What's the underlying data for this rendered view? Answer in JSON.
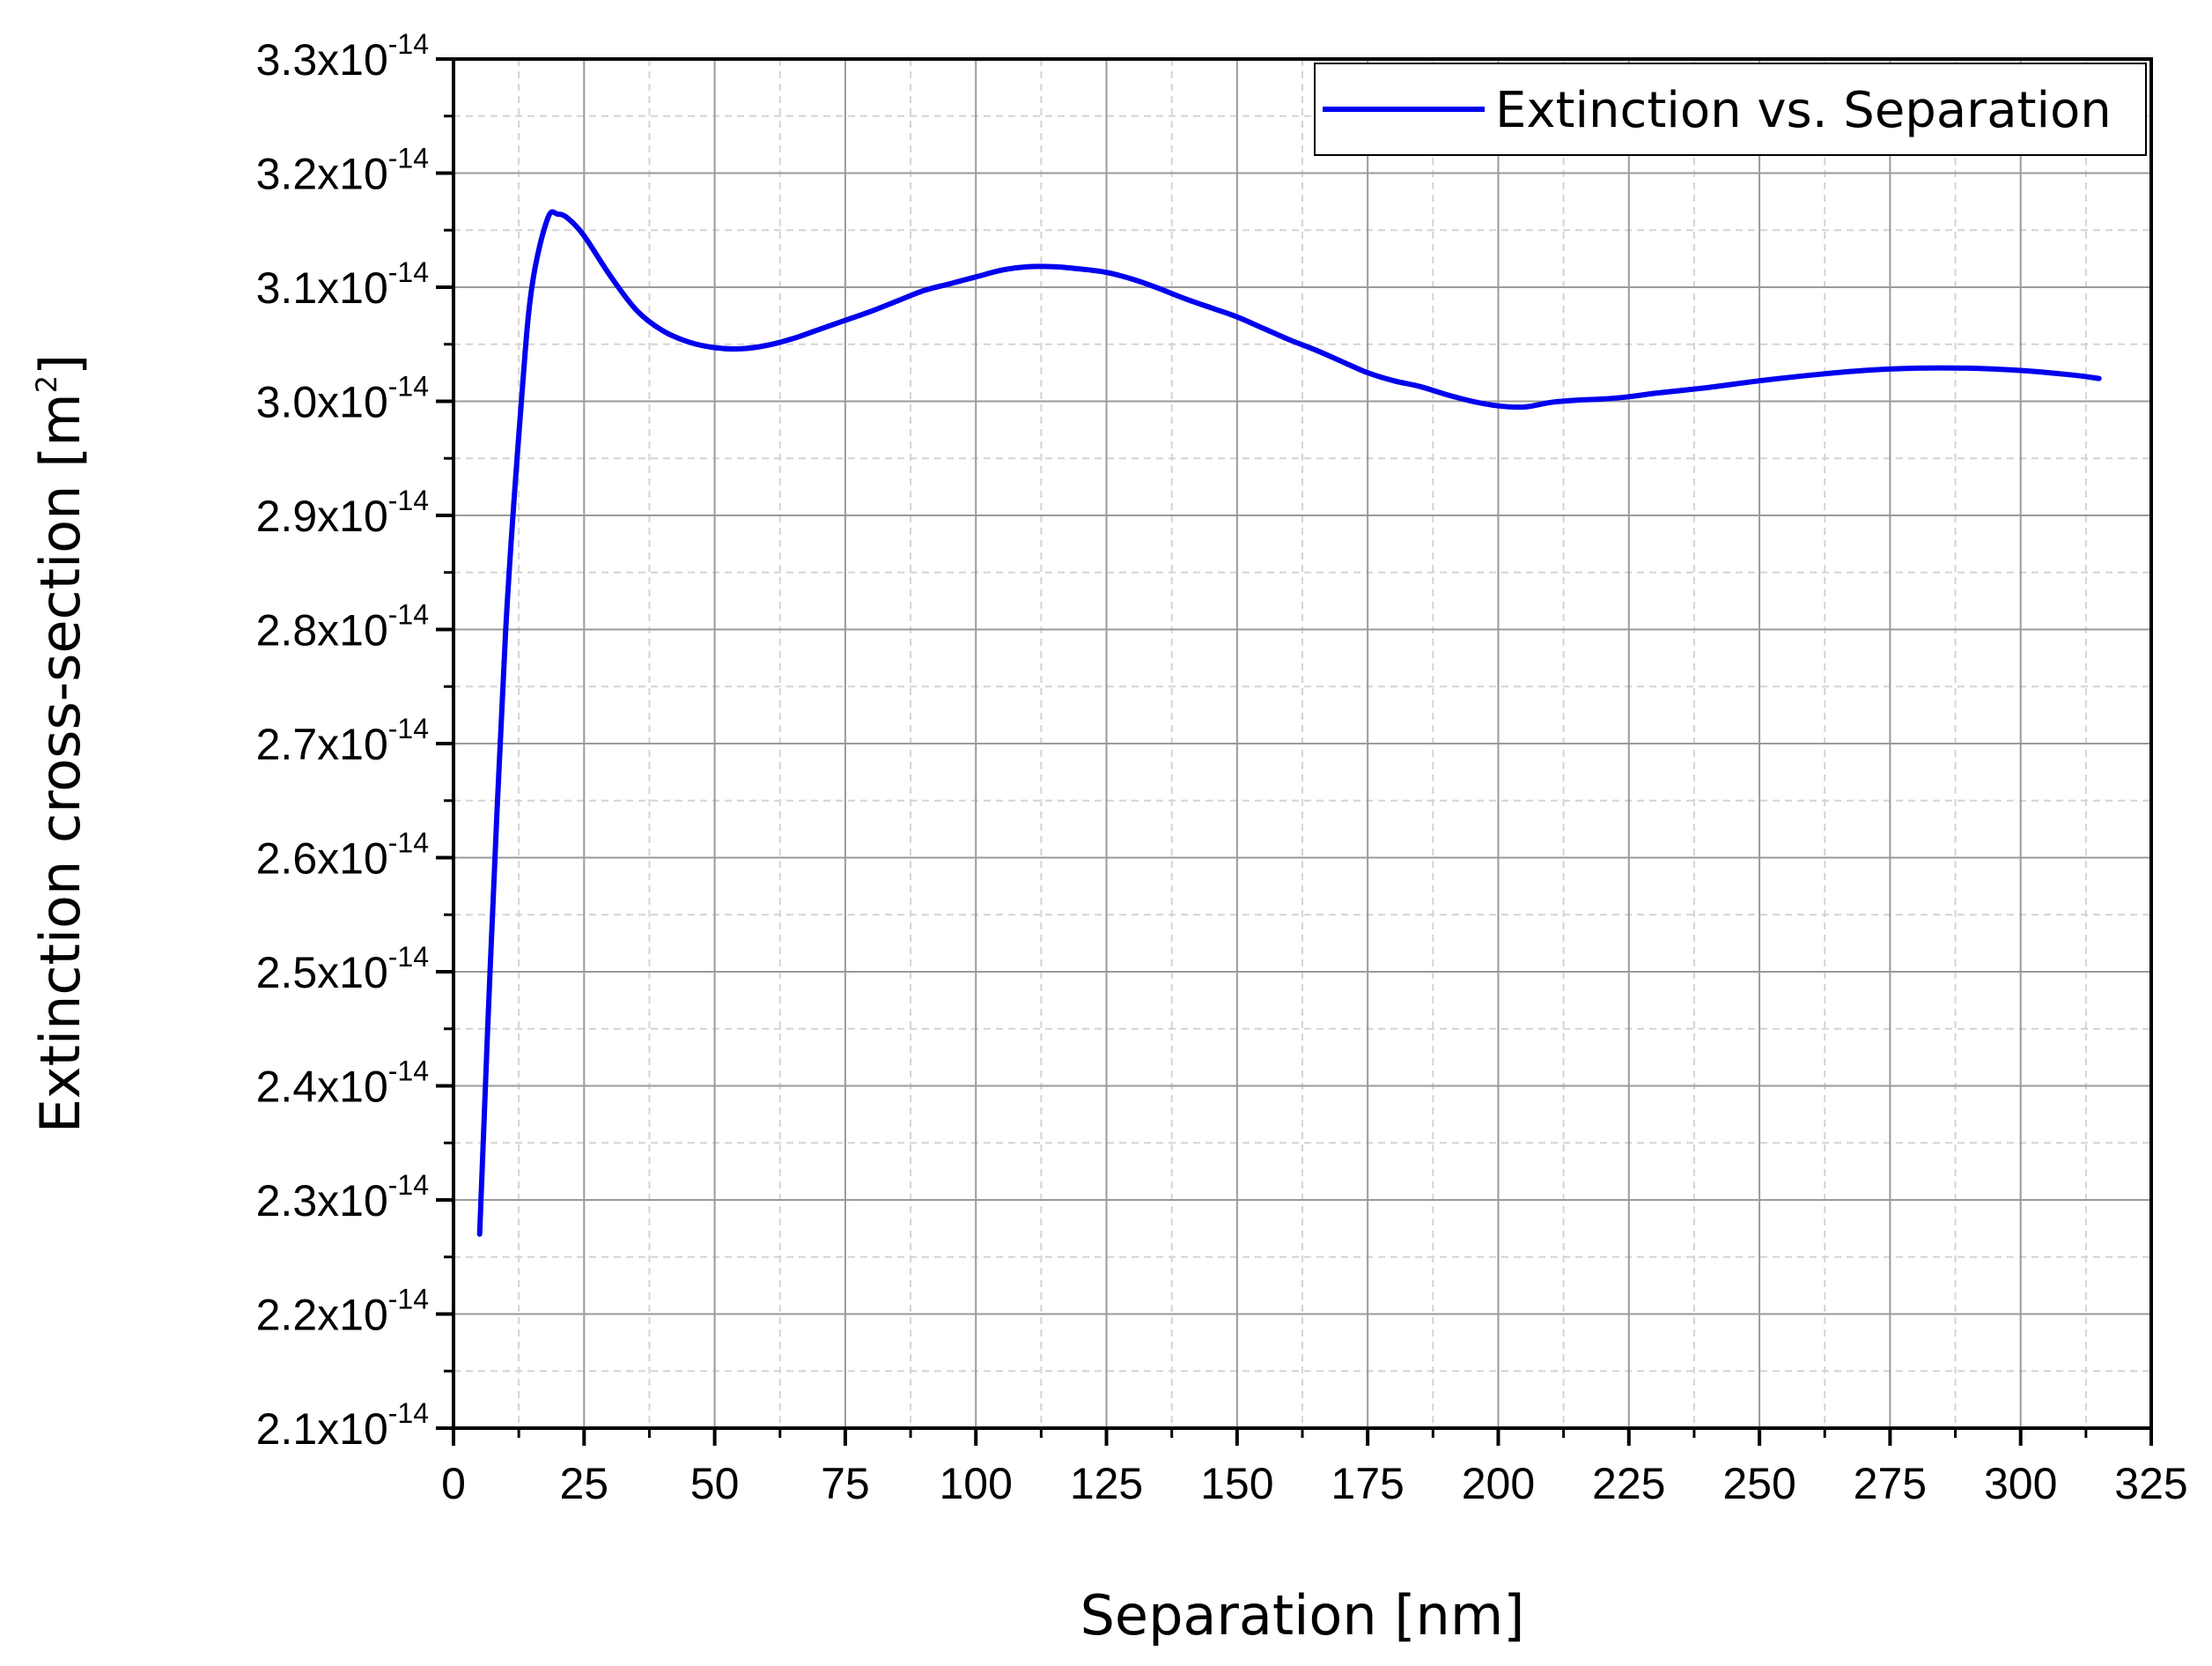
{
  "chart_data": {
    "type": "line",
    "title": "",
    "xlabel": "Separation [nm]",
    "ylabel": {
      "text": "Extinction cross-section [m",
      "sup": "2",
      "close": "]"
    },
    "xlim": [
      0,
      325
    ],
    "ylim": [
      2.1e-14,
      3.3e-14
    ],
    "xticks": [
      0,
      25,
      50,
      75,
      100,
      125,
      150,
      175,
      200,
      225,
      250,
      275,
      300,
      325
    ],
    "xtick_labels": [
      "0",
      "25",
      "50",
      "75",
      "100",
      "125",
      "150",
      "175",
      "200",
      "225",
      "250",
      "275",
      "300",
      "325"
    ],
    "yticks": [
      2.1e-14,
      2.2e-14,
      2.3e-14,
      2.4e-14,
      2.5e-14,
      2.6e-14,
      2.7e-14,
      2.8e-14,
      2.9e-14,
      3e-14,
      3.1e-14,
      3.2e-14,
      3.3e-14
    ],
    "ytick_labels": [
      {
        "mantissa": "2.1x10",
        "exp": "-14"
      },
      {
        "mantissa": "2.2x10",
        "exp": "-14"
      },
      {
        "mantissa": "2.3x10",
        "exp": "-14"
      },
      {
        "mantissa": "2.4x10",
        "exp": "-14"
      },
      {
        "mantissa": "2.5x10",
        "exp": "-14"
      },
      {
        "mantissa": "2.6x10",
        "exp": "-14"
      },
      {
        "mantissa": "2.7x10",
        "exp": "-14"
      },
      {
        "mantissa": "2.8x10",
        "exp": "-14"
      },
      {
        "mantissa": "2.9x10",
        "exp": "-14"
      },
      {
        "mantissa": "3.0x10",
        "exp": "-14"
      },
      {
        "mantissa": "3.1x10",
        "exp": "-14"
      },
      {
        "mantissa": "3.2x10",
        "exp": "-14"
      },
      {
        "mantissa": "3.3x10",
        "exp": "-14"
      }
    ],
    "grid": true,
    "legend_position": "top-right",
    "series": [
      {
        "name": "Extinction vs. Separation",
        "color": "#0000ee",
        "x": [
          5,
          7,
          10,
          13,
          15,
          18,
          20,
          22,
          25,
          30,
          35,
          40,
          45,
          50,
          55,
          60,
          65,
          70,
          75,
          80,
          85,
          90,
          95,
          100,
          105,
          110,
          115,
          120,
          125,
          130,
          135,
          140,
          145,
          150,
          155,
          160,
          165,
          170,
          175,
          180,
          185,
          190,
          195,
          200,
          205,
          210,
          215,
          220,
          225,
          230,
          240,
          250,
          260,
          270,
          280,
          290,
          300,
          310,
          315
        ],
        "y": [
          2.27e-14,
          2.5e-14,
          2.8e-14,
          3e-14,
          3.1e-14,
          3.16e-14,
          3.164e-14,
          3.16e-14,
          3.145e-14,
          3.11e-14,
          3.08e-14,
          3.062e-14,
          3.052e-14,
          3.047e-14,
          3.046e-14,
          3.049e-14,
          3.055e-14,
          3.063e-14,
          3.071e-14,
          3.079e-14,
          3.088e-14,
          3.097e-14,
          3.103e-14,
          3.109e-14,
          3.115e-14,
          3.118e-14,
          3.118e-14,
          3.116e-14,
          3.113e-14,
          3.107e-14,
          3.099e-14,
          3.09e-14,
          3.082e-14,
          3.074e-14,
          3.064e-14,
          3.054e-14,
          3.045e-14,
          3.035e-14,
          3.025e-14,
          3.018e-14,
          3.013e-14,
          3.006e-14,
          3e-14,
          2.996e-14,
          2.995e-14,
          2.999e-14,
          3.001e-14,
          3.002e-14,
          3.004e-14,
          3.007e-14,
          3.012e-14,
          3.018e-14,
          3.023e-14,
          3.027e-14,
          3.029e-14,
          3.029e-14,
          3.027e-14,
          3.023e-14,
          3.02e-14
        ]
      }
    ]
  }
}
